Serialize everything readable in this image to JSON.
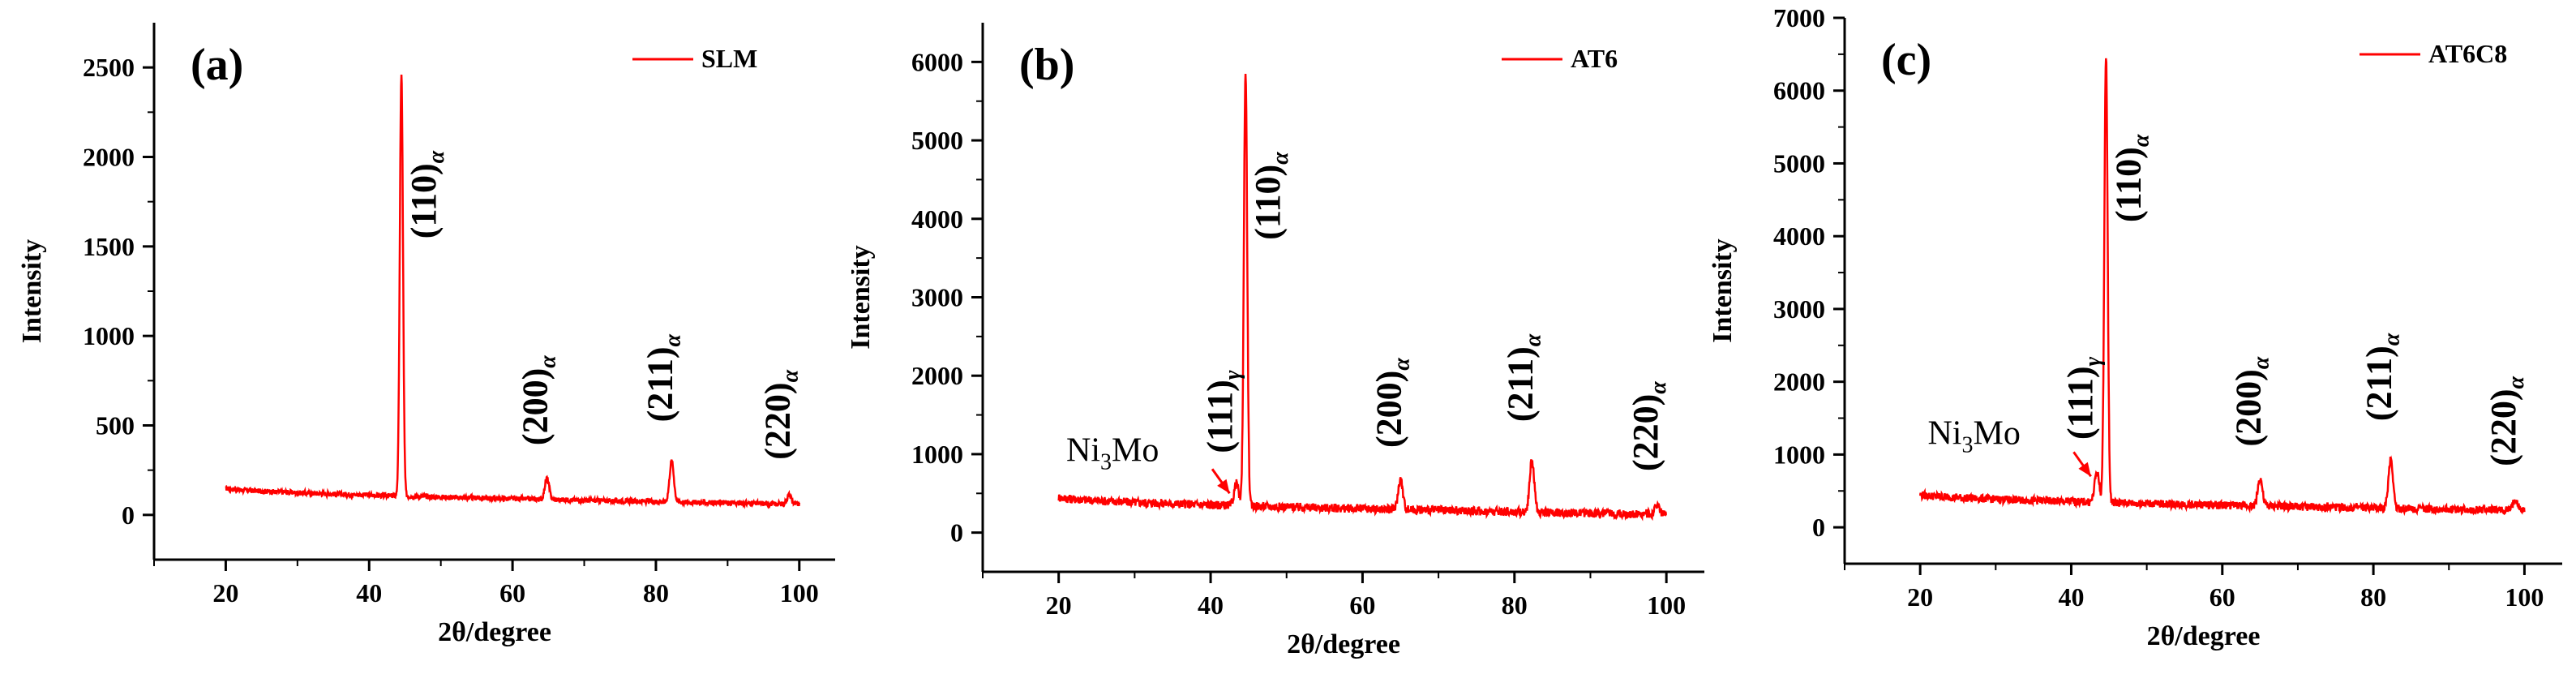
{
  "chart_data": [
    {
      "type": "line",
      "panel_label": "(a)",
      "legend": "SLM",
      "xlabel": "2θ/degree",
      "ylabel": "Intensity",
      "xlim": [
        10,
        105
      ],
      "ylim": [
        -250,
        2750
      ],
      "xticks": [
        20,
        40,
        60,
        80,
        100
      ],
      "yticks": [
        0,
        500,
        1000,
        1500,
        2000,
        2500
      ],
      "color": "#ff0000",
      "baseline": {
        "start": 150,
        "end": 60
      },
      "peaks": [
        {
          "x": 44.5,
          "y": 2450,
          "label": "(110)",
          "sub": "α"
        },
        {
          "x": 64.8,
          "y": 230,
          "label": "(200)",
          "sub": "α"
        },
        {
          "x": 82.2,
          "y": 360,
          "label": "(211)",
          "sub": "α"
        },
        {
          "x": 98.6,
          "y": 150,
          "label": "(220)",
          "sub": "α"
        }
      ],
      "annotations": []
    },
    {
      "type": "line",
      "panel_label": "(b)",
      "legend": "AT6",
      "xlabel": "2θ/degree",
      "ylabel": "Intensity",
      "xlim": [
        10,
        105
      ],
      "ylim": [
        -500,
        6500
      ],
      "xticks": [
        20,
        40,
        60,
        80,
        100
      ],
      "yticks": [
        0,
        1000,
        2000,
        3000,
        4000,
        5000,
        6000
      ],
      "color": "#ff0000",
      "baseline": {
        "start": 450,
        "end": 230
      },
      "peaks": [
        {
          "x": 43.4,
          "y": 600,
          "label": "(111)",
          "sub": "γ"
        },
        {
          "x": 44.6,
          "y": 5800,
          "label": "(110)",
          "sub": "α"
        },
        {
          "x": 65.0,
          "y": 720,
          "label": "(200)",
          "sub": "α"
        },
        {
          "x": 82.3,
          "y": 1050,
          "label": "(211)",
          "sub": "α"
        },
        {
          "x": 98.8,
          "y": 420,
          "label": "(220)",
          "sub": "α"
        }
      ],
      "annotations": [
        {
          "text": "Ni",
          "sub": "3",
          "suffix": "Mo",
          "arrow_to": [
            42.5,
            500
          ]
        }
      ]
    },
    {
      "type": "line",
      "panel_label": "(c)",
      "legend": "AT6C8",
      "xlabel": "2θ/degree",
      "ylabel": "Intensity",
      "xlim": [
        10,
        105
      ],
      "ylim": [
        -500,
        7000
      ],
      "xticks": [
        20,
        40,
        60,
        80,
        100
      ],
      "yticks": [
        0,
        1000,
        2000,
        3000,
        4000,
        5000,
        6000,
        7000
      ],
      "color": "#ff0000",
      "baseline": {
        "start": 450,
        "end": 230
      },
      "peaks": [
        {
          "x": 43.4,
          "y": 760,
          "label": "(111)",
          "sub": "γ"
        },
        {
          "x": 44.6,
          "y": 6420,
          "label": "(110)",
          "sub": "α"
        },
        {
          "x": 65.0,
          "y": 720,
          "label": "(200)",
          "sub": "α"
        },
        {
          "x": 82.3,
          "y": 1070,
          "label": "(211)",
          "sub": "α"
        },
        {
          "x": 98.8,
          "y": 450,
          "label": "(220)",
          "sub": "α"
        }
      ],
      "annotations": [
        {
          "text": "Ni",
          "sub": "3",
          "suffix": "Mo",
          "arrow_to": [
            42.6,
            700
          ]
        }
      ]
    }
  ]
}
